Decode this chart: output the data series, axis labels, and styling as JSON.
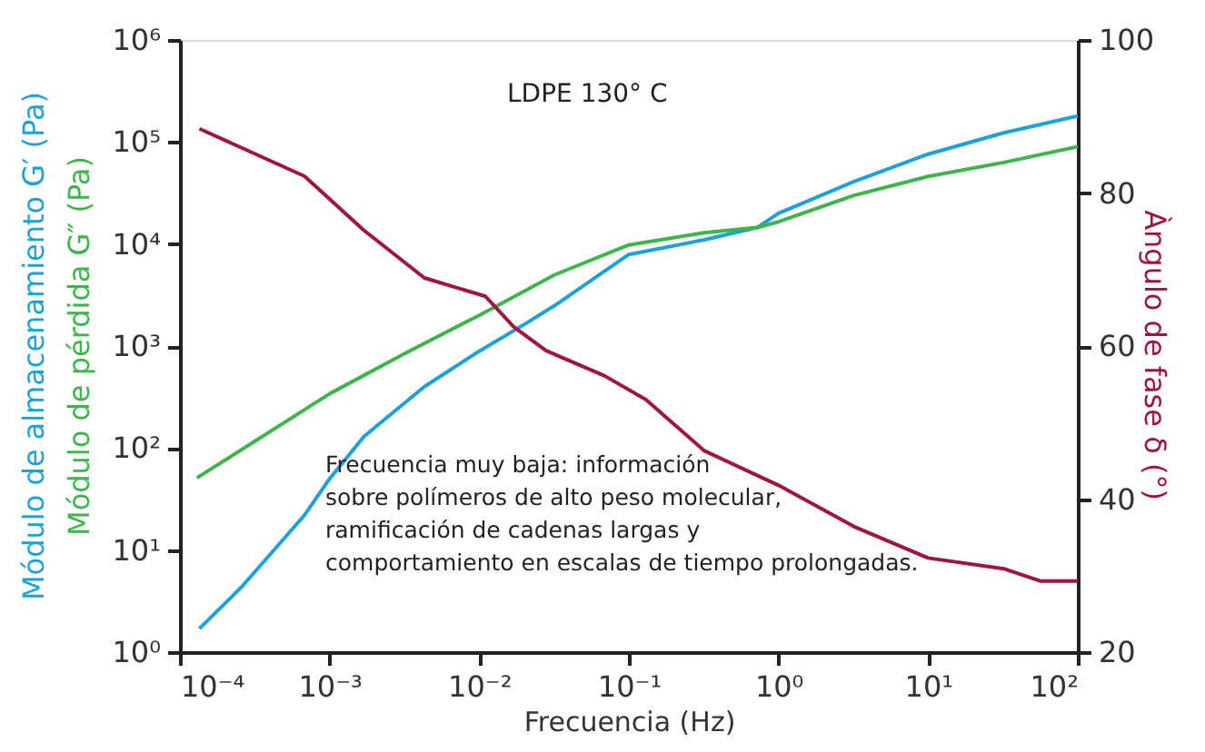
{
  "chart_data": {
    "type": "line",
    "title": "LDPE 130° C",
    "xlabel": "Frecuencia (Hz)",
    "y2label": "Àngulo de fase δ (°)",
    "annotations": [
      "Frecuencia muy baja: información\nsobre polímeros de alto peso molecular,\nramificación de cadenas largas y\ncomportamiento en escalas de tiempo prolongadas."
    ],
    "log": "xy",
    "grid": false,
    "xlim": [
      0.0001,
      100
    ],
    "ylim": [
      1,
      1000000
    ],
    "y2lim": [
      20,
      100
    ],
    "xticks": [
      {
        "value": 0.0001,
        "label": "10⁻⁴"
      },
      {
        "value": 0.001,
        "label": "10⁻³"
      },
      {
        "value": 0.01,
        "label": "10⁻²"
      },
      {
        "value": 0.1,
        "label": "10⁻¹"
      },
      {
        "value": 1,
        "label": "10⁰"
      },
      {
        "value": 10,
        "label": "10¹"
      },
      {
        "value": 100,
        "label": "10²"
      }
    ],
    "yticks": [
      {
        "value": 1,
        "label": "10⁰"
      },
      {
        "value": 10,
        "label": "10¹"
      },
      {
        "value": 100,
        "label": "10²"
      },
      {
        "value": 1000,
        "label": "10³"
      },
      {
        "value": 10000,
        "label": "10⁴"
      },
      {
        "value": 100000,
        "label": "10⁵"
      },
      {
        "value": 1000000,
        "label": "10⁶"
      }
    ],
    "y2ticks": [
      20,
      40,
      60,
      80,
      100
    ],
    "series": [
      {
        "name": "Módulo de almacenamiento G′ (Pa)",
        "color": "#1ba1dc",
        "x": [
          0.000135,
          0.00026,
          0.00068,
          0.001,
          0.0017,
          0.0043,
          0.01,
          0.021,
          0.032,
          0.1,
          0.32,
          0.72,
          1,
          3.2,
          10,
          32,
          100
        ],
        "values": [
          1.7,
          4.4,
          22,
          50,
          130,
          400,
          890,
          1700,
          2500,
          7900,
          11000,
          14500,
          20000,
          41000,
          76000,
          123000,
          180000
        ]
      },
      {
        "name": "Módulo de pérdida G″ (Pa)",
        "color": "#3db54a",
        "x": [
          0.00013,
          0.001,
          0.0032,
          0.01,
          0.032,
          0.1,
          0.32,
          0.72,
          1,
          3.2,
          10,
          32,
          100
        ],
        "values": [
          51,
          340,
          850,
          2000,
          5000,
          9800,
          12900,
          14500,
          16500,
          30000,
          46000,
          63000,
          90000
        ]
      },
      {
        "color": "#a0153e",
        "axis": "y2",
        "x": [
          0.000135,
          0.00068,
          0.0017,
          0.0043,
          0.011,
          0.017,
          0.028,
          0.069,
          0.13,
          0.32,
          1,
          3.2,
          10,
          32,
          56,
          100
        ],
        "values": [
          88.4,
          82.2,
          75.1,
          68.9,
          66.5,
          62.5,
          59.4,
          56.1,
          53,
          46.3,
          41.8,
          36.4,
          32.3,
          30.9,
          29.3,
          29.3
        ]
      }
    ]
  }
}
